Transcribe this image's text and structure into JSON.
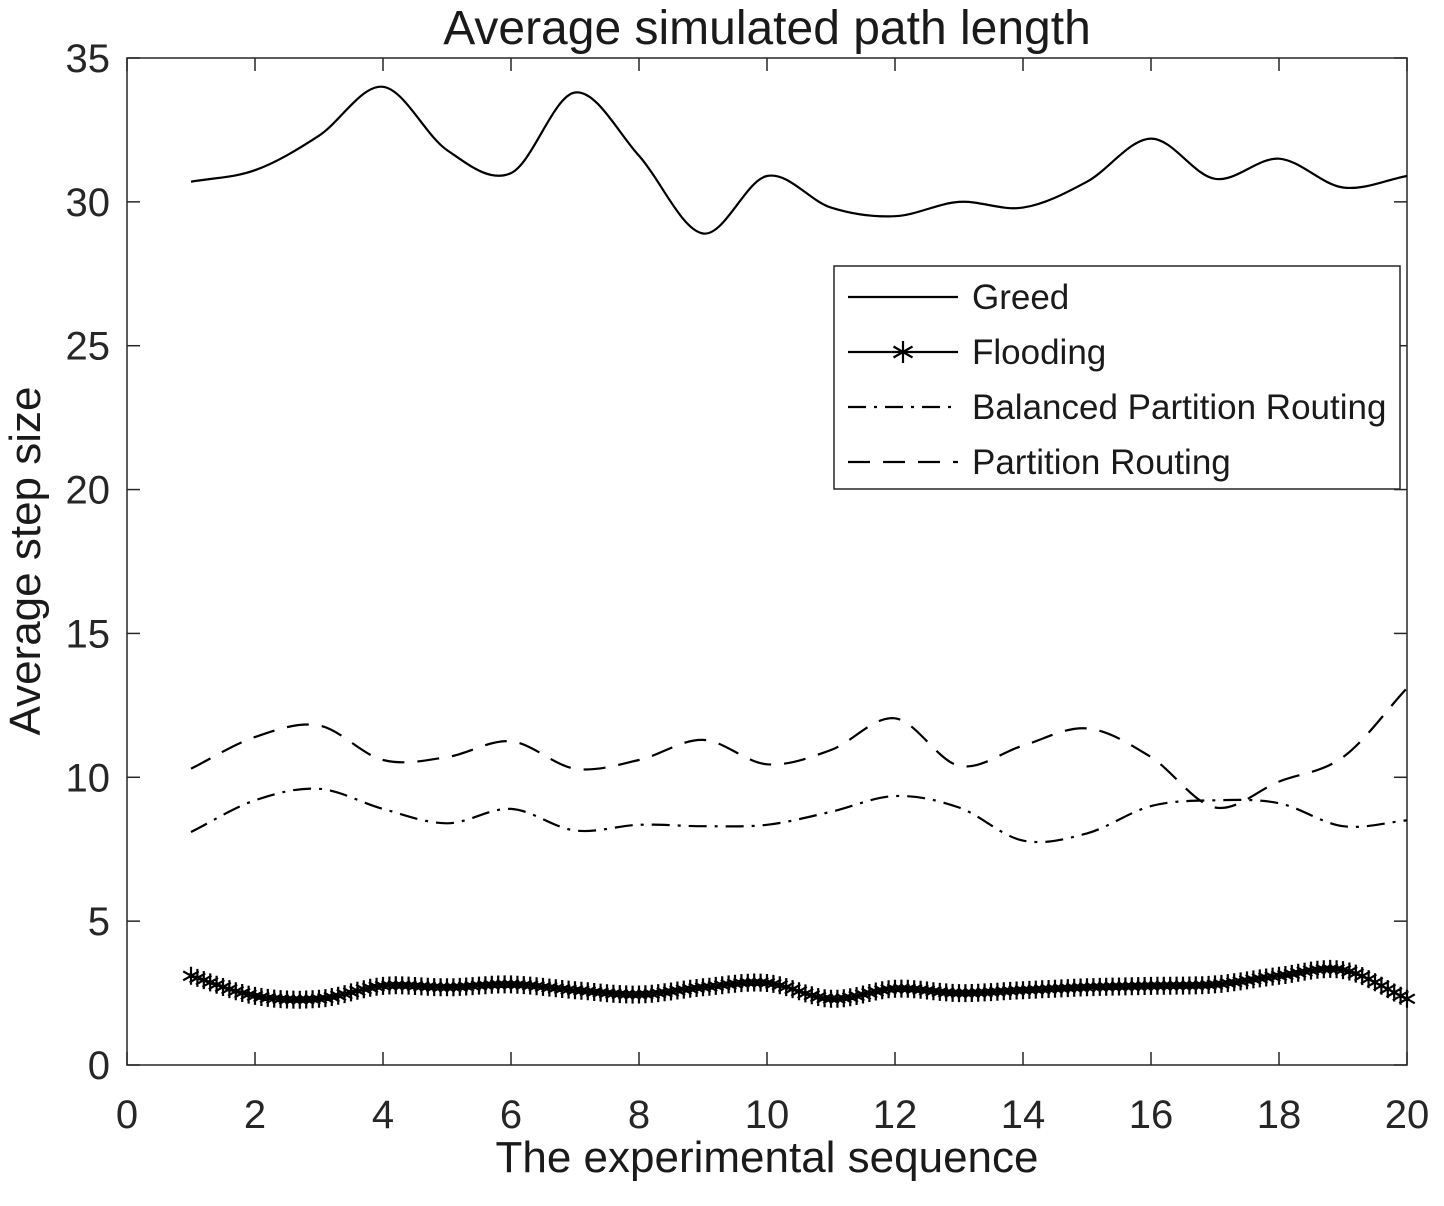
{
  "figure": {
    "title": "Average simulated path length",
    "xlabel": "The experimental sequence",
    "ylabel": "Average step size"
  },
  "chart_data": {
    "type": "line",
    "title": "Average simulated path length",
    "xlabel": "The experimental sequence",
    "ylabel": "Average step size",
    "xlim": [
      0,
      20
    ],
    "ylim": [
      0,
      35
    ],
    "xticks": [
      0,
      2,
      4,
      6,
      8,
      10,
      12,
      14,
      16,
      18,
      20
    ],
    "yticks": [
      0,
      5,
      10,
      15,
      20,
      25,
      30,
      35
    ],
    "grid": false,
    "legend_position": "upper-right-inside",
    "x": [
      1,
      2,
      3,
      4,
      5,
      6,
      7,
      8,
      9,
      10,
      11,
      12,
      13,
      14,
      15,
      16,
      17,
      18,
      19,
      20
    ],
    "series": [
      {
        "name": "Greed",
        "line": "solid",
        "marker": "none",
        "values": [
          30.7,
          31.1,
          32.3,
          34.0,
          31.8,
          31.0,
          33.8,
          31.6,
          28.9,
          30.9,
          29.8,
          29.5,
          30.0,
          29.8,
          30.7,
          32.2,
          30.8,
          31.5,
          30.5,
          30.9
        ]
      },
      {
        "name": "Flooding",
        "line": "solid",
        "marker": "asterisk",
        "marker_step": 0.1,
        "values": [
          3.1,
          2.4,
          2.3,
          2.75,
          2.7,
          2.8,
          2.6,
          2.45,
          2.7,
          2.85,
          2.3,
          2.65,
          2.5,
          2.6,
          2.7,
          2.75,
          2.8,
          3.1,
          3.3,
          2.3
        ]
      },
      {
        "name": "Balanced Partition Routing",
        "line": "dash-dot",
        "marker": "none",
        "values": [
          8.1,
          9.2,
          9.6,
          8.9,
          8.4,
          8.9,
          8.15,
          8.35,
          8.3,
          8.35,
          8.8,
          9.35,
          8.95,
          7.8,
          8.05,
          9.0,
          9.2,
          9.1,
          8.3,
          8.5
        ]
      },
      {
        "name": "Partition Routing",
        "line": "dashed",
        "marker": "none",
        "values": [
          10.3,
          11.4,
          11.8,
          10.6,
          10.7,
          11.25,
          10.3,
          10.6,
          11.3,
          10.45,
          10.95,
          12.05,
          10.4,
          11.1,
          11.7,
          10.7,
          8.95,
          9.85,
          10.7,
          13.1
        ]
      }
    ],
    "colors": {
      "line": "#000000",
      "axis": "#262626",
      "text": "#1a1a1a",
      "background": "#ffffff"
    }
  }
}
